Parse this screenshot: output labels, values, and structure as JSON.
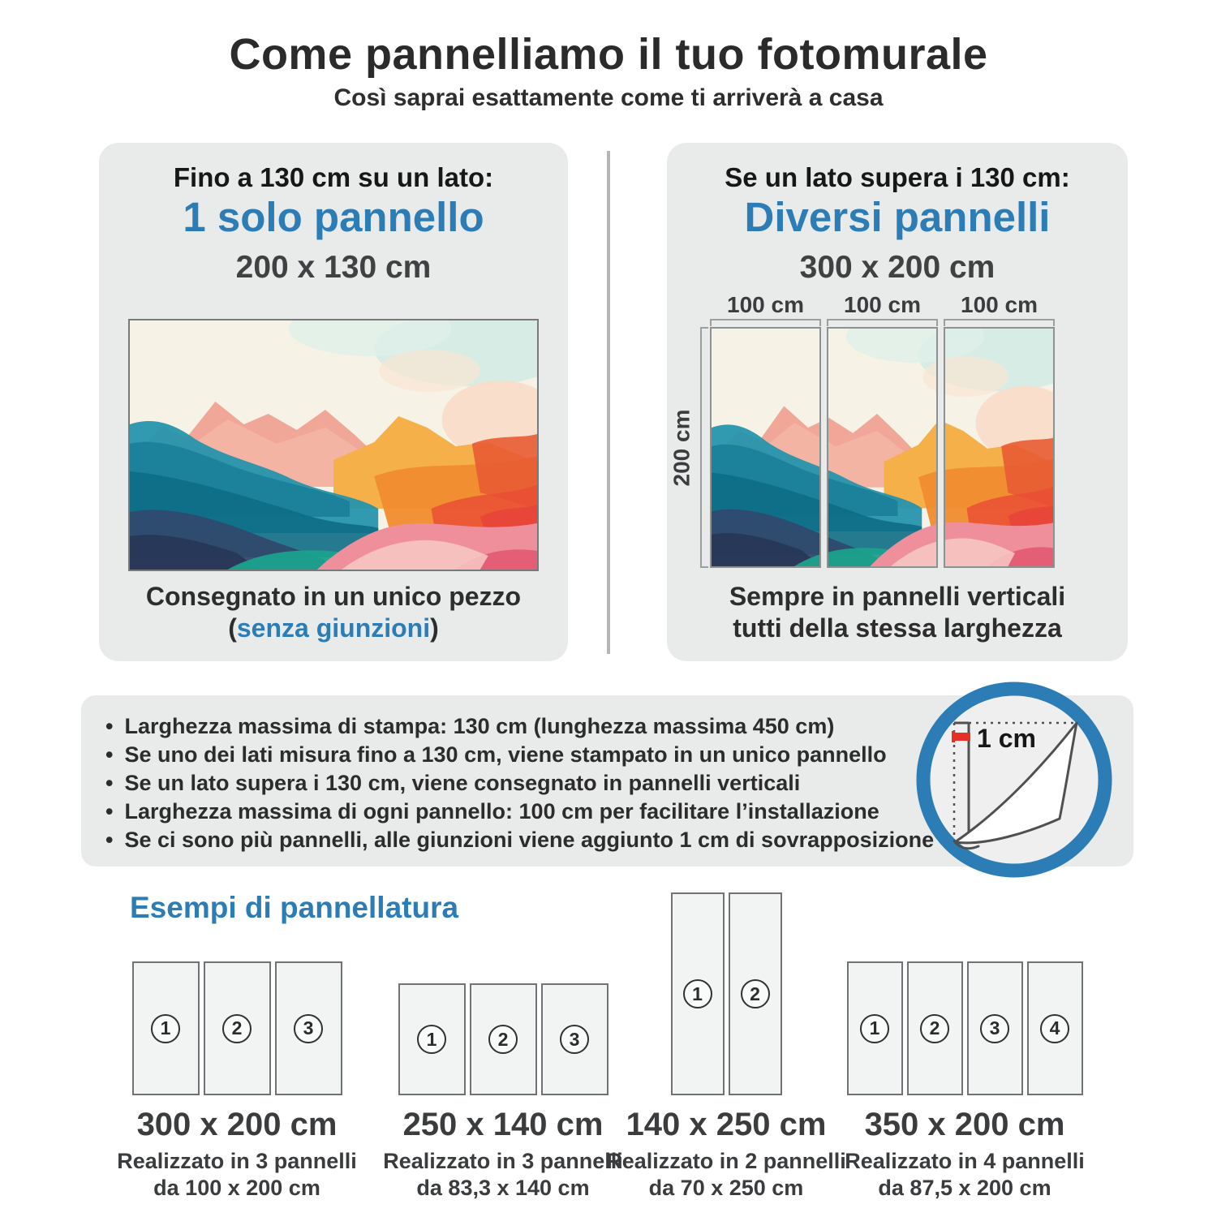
{
  "header": {
    "title": "Come pannelliamo il tuo fotomurale",
    "subtitle": "Così saprai esattamente come ti arriverà a casa"
  },
  "left_card": {
    "condition": "Fino a 130 cm su un lato:",
    "result": "1 solo pannello",
    "size": "200 x 130 cm",
    "caption_line1": "Consegnato in un unico pezzo",
    "caption_paren_open": "(",
    "caption_highlight": "senza giunzioni",
    "caption_paren_close": ")",
    "artwork": "watercolor-abstract-landscape"
  },
  "right_card": {
    "condition": "Se un lato supera i 130 cm:",
    "result": "Diversi pannelli",
    "size": "300 x 200 cm",
    "width_labels": [
      "100 cm",
      "100 cm",
      "100 cm"
    ],
    "height_label": "200 cm",
    "caption_line1": "Sempre in pannelli verticali",
    "caption_line2": "tutti della stessa larghezza",
    "artwork": "watercolor-abstract-landscape-split-in-3"
  },
  "info": {
    "bullets": [
      "Larghezza massima di stampa: 130 cm (lunghezza massima 450 cm)",
      "Se uno dei lati misura fino a 130 cm, viene stampato in un unico pannello",
      "Se un lato supera i 130 cm, viene consegnato in pannelli verticali",
      "Larghezza massima di ogni pannello: 100 cm per facilitare l’installazione",
      "Se ci sono più pannelli, alle giunzioni viene aggiunto 1 cm di sovrapposizione"
    ],
    "overlap_label": "1 cm",
    "overlap_icon": "page-curl-overlap-icon"
  },
  "examples": {
    "heading": "Esempi di pannellatura",
    "items": [
      {
        "size": "300 x 200 cm",
        "line1": "Realizzato in 3 pannelli",
        "line2": "da 100 x 200 cm",
        "panels": [
          "1",
          "2",
          "3"
        ]
      },
      {
        "size": "250 x 140 cm",
        "line1": "Realizzato in 3 pannelli",
        "line2": "da 83,3 x 140 cm",
        "panels": [
          "1",
          "2",
          "3"
        ]
      },
      {
        "size": "140 x 250 cm",
        "line1": "Realizzato in 2 pannelli",
        "line2": "da 70 x 250 cm",
        "panels": [
          "1",
          "2"
        ]
      },
      {
        "size": "350 x 200 cm",
        "line1": "Realizzato in 4 pannelli",
        "line2": "da 87,5 x 200 cm",
        "panels": [
          "1",
          "2",
          "3",
          "4"
        ]
      }
    ]
  },
  "colors": {
    "accent_blue": "#2c7db6",
    "card_bg": "#e9ebea",
    "text_dark": "#2b2b2b",
    "overlap_red": "#e53028"
  }
}
